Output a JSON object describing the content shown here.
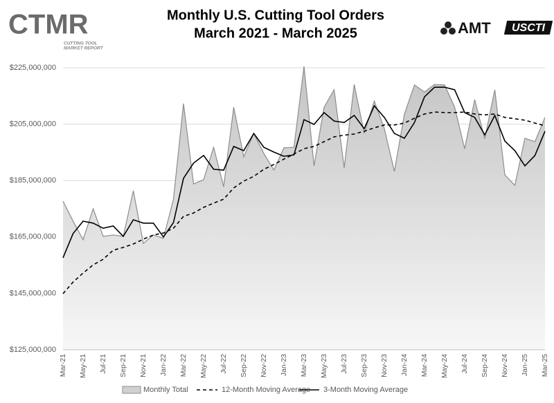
{
  "chart_data": {
    "type": "area",
    "title": "Monthly U.S. Cutting Tool Orders",
    "subtitle": "March 2021 - March 2025",
    "categories": [
      "Mar-21",
      null,
      "May-21",
      null,
      "Jul-21",
      null,
      "Sep-21",
      null,
      "Nov-21",
      null,
      "Jan-22",
      null,
      "Mar-22",
      null,
      "May-22",
      null,
      "Jul-22",
      null,
      "Sep-22",
      null,
      "Nov-22",
      null,
      "Jan-23",
      null,
      "Mar-23",
      null,
      "May-23",
      null,
      "Jul-23",
      null,
      "Sep-23",
      null,
      "Nov-23",
      null,
      "Jan-24",
      null,
      "Mar-24",
      null,
      "May-24",
      null,
      "Jul-24",
      null,
      "Sep-24",
      null,
      "Nov-24",
      null,
      "Jan-25",
      null,
      "Mar-25"
    ],
    "series": [
      {
        "name": "Monthly Total",
        "kind": "area",
        "color": "#8c8c8c",
        "values": [
          177700000,
          170600000,
          164000000,
          175000000,
          165200000,
          165700000,
          165200000,
          181400000,
          162700000,
          165700000,
          164500000,
          178400000,
          212300000,
          183800000,
          185300000,
          196800000,
          182800000,
          211000000,
          193400000,
          201700000,
          194600000,
          188700000,
          196600000,
          196800000,
          225500000,
          190200000,
          211000000,
          217200000,
          189500000,
          219100000,
          201700000,
          213200000,
          203400000,
          188200000,
          208600000,
          218900000,
          216400000,
          219100000,
          218900000,
          211000000,
          196300000,
          213700000,
          199800000,
          217200000,
          187000000,
          183300000,
          200000000,
          198800000,
          207400000
        ]
      },
      {
        "name": "12-Month Moving Average",
        "kind": "line",
        "dashed": true,
        "color": "#000000",
        "values": [
          144900000,
          149000000,
          152200000,
          155100000,
          157100000,
          160300000,
          161300000,
          162500000,
          164200000,
          165700000,
          166400000,
          168100000,
          172300000,
          173500000,
          175500000,
          177000000,
          178400000,
          182400000,
          184800000,
          186500000,
          189000000,
          190700000,
          192600000,
          194400000,
          196300000,
          197100000,
          198800000,
          200500000,
          201100000,
          201500000,
          202500000,
          203700000,
          204700000,
          204700000,
          205400000,
          207100000,
          208600000,
          209300000,
          209100000,
          209100000,
          209300000,
          208600000,
          208300000,
          208600000,
          207400000,
          206900000,
          206400000,
          205400000,
          204400000
        ]
      },
      {
        "name": "3-Month Moving Average",
        "kind": "line",
        "dashed": false,
        "color": "#000000",
        "values": [
          157600000,
          166200000,
          170600000,
          169900000,
          168100000,
          168900000,
          165200000,
          171100000,
          169900000,
          169900000,
          165000000,
          170100000,
          185800000,
          191200000,
          193900000,
          189000000,
          188700000,
          197100000,
          195600000,
          201700000,
          196800000,
          195100000,
          193600000,
          194100000,
          206600000,
          204900000,
          209100000,
          206100000,
          205600000,
          208100000,
          203400000,
          211500000,
          207400000,
          201700000,
          200000000,
          205600000,
          214700000,
          218100000,
          218100000,
          217200000,
          209100000,
          207400000,
          201200000,
          208100000,
          199000000,
          195600000,
          190200000,
          193900000,
          202500000
        ]
      }
    ],
    "ylim": [
      125000000,
      225000000
    ],
    "yticks": [
      {
        "value": 125000000,
        "label": "$125,000,000"
      },
      {
        "value": 145000000,
        "label": "$145,000,000"
      },
      {
        "value": 165000000,
        "label": "$165,000,000"
      },
      {
        "value": 185000000,
        "label": "$185,000,000"
      },
      {
        "value": 205000000,
        "label": "$205,000,000"
      },
      {
        "value": 225000000,
        "label": "$225,000,000"
      }
    ],
    "grid": true,
    "legend": "bottom"
  },
  "logos": {
    "ctmr": "CTMR",
    "ctmr_sub1": "CUTTING TOOL",
    "ctmr_sub2": "MARKET REPORT",
    "amt": "AMT",
    "uscti": "USCTI"
  }
}
